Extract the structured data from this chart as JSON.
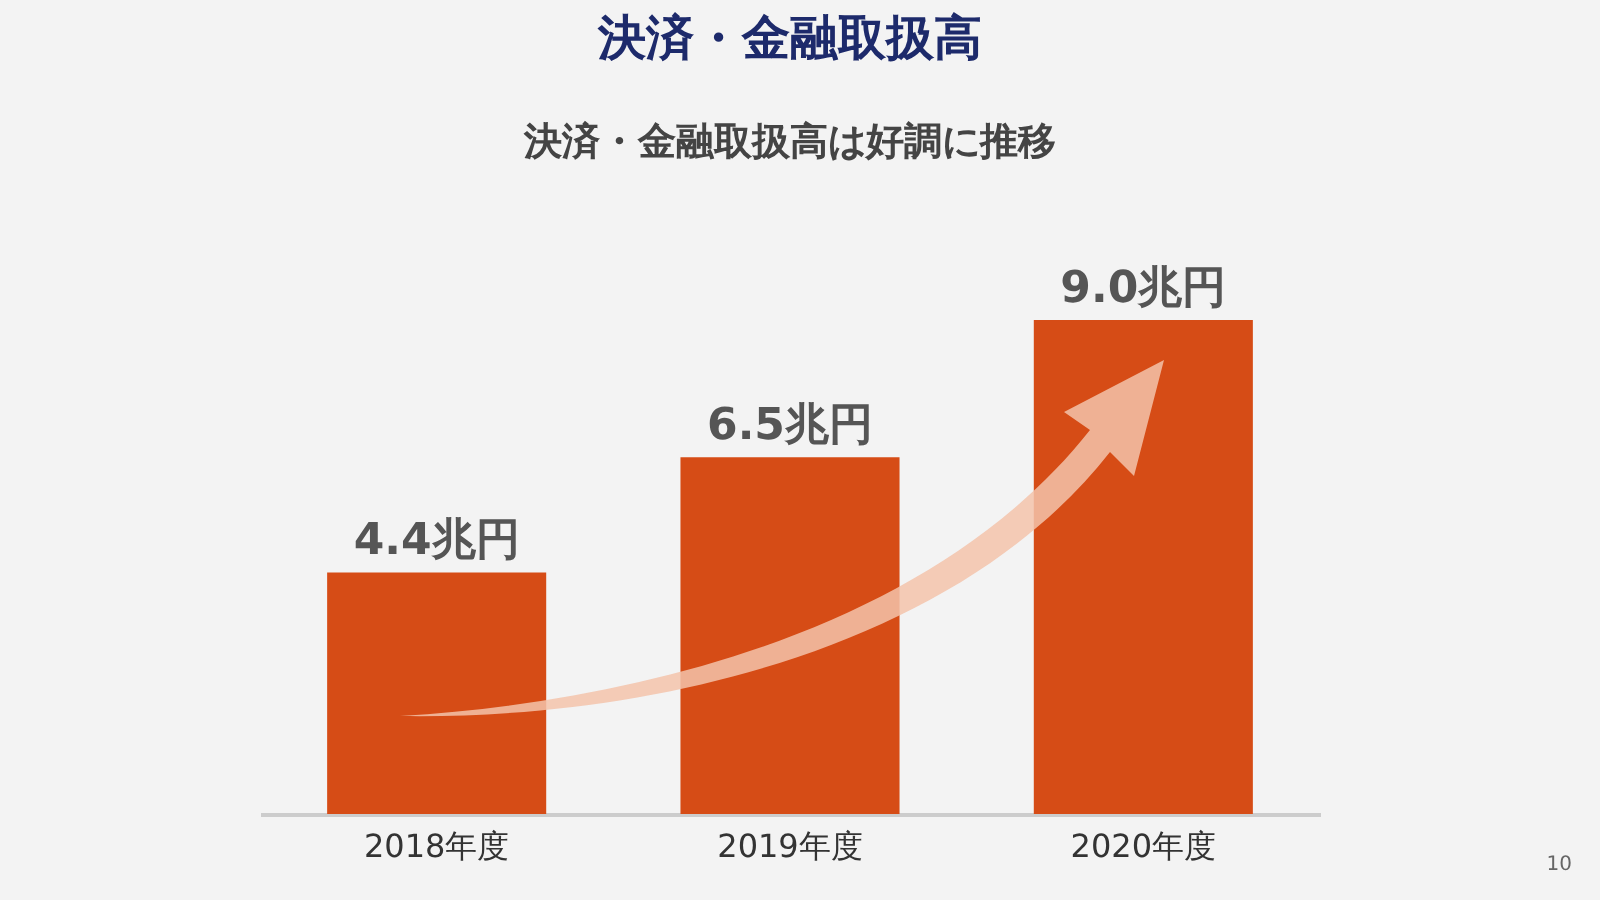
{
  "chart_data": {
    "type": "bar",
    "title": "決済・金融取扱高",
    "subtitle": "決済・金融取扱高は好調に推移",
    "categories": [
      "2018年度",
      "2019年度",
      "2020年度"
    ],
    "values": [
      4.4,
      6.5,
      9.0
    ],
    "value_labels": [
      "4.4兆円",
      "6.5兆円",
      "9.0兆円"
    ],
    "color": "#d64c16",
    "annotations": [
      "10"
    ]
  }
}
